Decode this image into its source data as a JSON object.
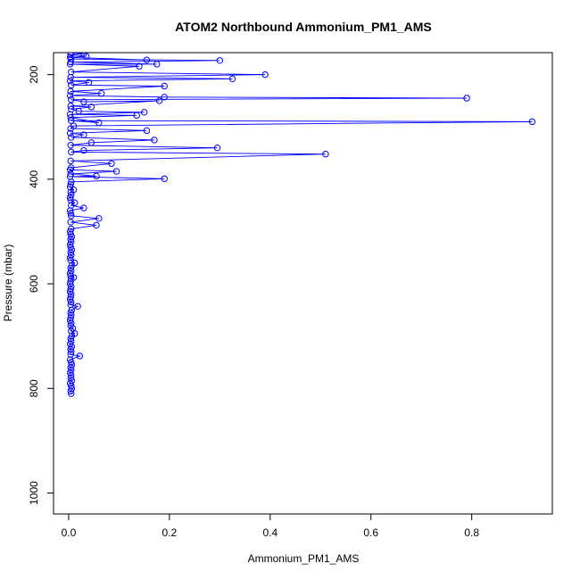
{
  "chart_data": {
    "type": "line",
    "title": "ATOM2 Northbound Ammonium_PM1_AMS",
    "xlabel": "Ammonium_PM1_AMS",
    "ylabel": "Pressure (mbar)",
    "xlim": [
      -0.03,
      0.96
    ],
    "ylim": [
      1040,
      158
    ],
    "y_inverted": true,
    "xticks": [
      0.0,
      0.2,
      0.4,
      0.6,
      0.8
    ],
    "xtick_labels": [
      "0.0",
      "0.2",
      "0.4",
      "0.6",
      "0.8"
    ],
    "yticks": [
      200,
      400,
      600,
      800,
      1000
    ],
    "ytick_labels": [
      "200",
      "400",
      "600",
      "800",
      "1000"
    ],
    "grid": false,
    "legend": "none",
    "series": [
      {
        "color": "#0000ff",
        "marker": "open-circle",
        "points": [
          [
            0.005,
            810
          ],
          [
            0.004,
            805
          ],
          [
            0.006,
            800
          ],
          [
            0.005,
            795
          ],
          [
            0.003,
            790
          ],
          [
            0.006,
            785
          ],
          [
            0.004,
            780
          ],
          [
            0.005,
            775
          ],
          [
            0.003,
            770
          ],
          [
            0.005,
            765
          ],
          [
            0.004,
            760
          ],
          [
            0.006,
            755
          ],
          [
            0.005,
            750
          ],
          [
            0.003,
            745
          ],
          [
            0.022,
            738
          ],
          [
            0.004,
            735
          ],
          [
            0.005,
            730
          ],
          [
            0.004,
            725
          ],
          [
            0.006,
            720
          ],
          [
            0.003,
            715
          ],
          [
            0.005,
            710
          ],
          [
            0.004,
            705
          ],
          [
            0.006,
            700
          ],
          [
            0.012,
            695
          ],
          [
            0.005,
            690
          ],
          [
            0.008,
            685
          ],
          [
            0.004,
            680
          ],
          [
            0.005,
            675
          ],
          [
            0.003,
            670
          ],
          [
            0.004,
            665
          ],
          [
            0.005,
            660
          ],
          [
            0.004,
            655
          ],
          [
            0.006,
            650
          ],
          [
            0.018,
            643
          ],
          [
            0.004,
            640
          ],
          [
            0.005,
            635
          ],
          [
            0.003,
            630
          ],
          [
            0.004,
            625
          ],
          [
            0.005,
            620
          ],
          [
            0.003,
            615
          ],
          [
            0.004,
            610
          ],
          [
            0.005,
            605
          ],
          [
            0.003,
            600
          ],
          [
            0.004,
            595
          ],
          [
            0.005,
            590
          ],
          [
            0.01,
            588
          ],
          [
            0.004,
            585
          ],
          [
            0.003,
            580
          ],
          [
            0.005,
            575
          ],
          [
            0.004,
            570
          ],
          [
            0.006,
            565
          ],
          [
            0.012,
            560
          ],
          [
            0.004,
            555
          ],
          [
            0.003,
            550
          ],
          [
            0.005,
            545
          ],
          [
            0.004,
            540
          ],
          [
            0.006,
            535
          ],
          [
            0.004,
            530
          ],
          [
            0.003,
            525
          ],
          [
            0.005,
            520
          ],
          [
            0.004,
            515
          ],
          [
            0.006,
            510
          ],
          [
            0.004,
            505
          ],
          [
            0.003,
            500
          ],
          [
            0.005,
            495
          ],
          [
            0.055,
            488
          ],
          [
            0.004,
            482
          ],
          [
            0.06,
            475
          ],
          [
            0.005,
            470
          ],
          [
            0.004,
            465
          ],
          [
            0.003,
            460
          ],
          [
            0.03,
            455
          ],
          [
            0.005,
            450
          ],
          [
            0.012,
            445
          ],
          [
            0.004,
            440
          ],
          [
            0.003,
            435
          ],
          [
            0.005,
            430
          ],
          [
            0.004,
            425
          ],
          [
            0.01,
            420
          ],
          [
            0.003,
            415
          ],
          [
            0.004,
            410
          ],
          [
            0.005,
            405
          ],
          [
            0.19,
            399
          ],
          [
            0.003,
            395
          ],
          [
            0.055,
            394
          ],
          [
            0.004,
            390
          ],
          [
            0.095,
            385
          ],
          [
            0.003,
            382
          ],
          [
            0.005,
            378
          ],
          [
            0.085,
            370
          ],
          [
            0.004,
            365
          ],
          [
            0.51,
            352
          ],
          [
            0.005,
            348
          ],
          [
            0.03,
            345
          ],
          [
            0.295,
            340
          ],
          [
            0.004,
            335
          ],
          [
            0.045,
            330
          ],
          [
            0.17,
            325
          ],
          [
            0.005,
            320
          ],
          [
            0.03,
            315
          ],
          [
            0.003,
            312
          ],
          [
            0.155,
            307
          ],
          [
            0.004,
            303
          ],
          [
            0.01,
            298
          ],
          [
            0.92,
            290
          ],
          [
            0.005,
            288
          ],
          [
            0.06,
            292
          ],
          [
            0.004,
            282
          ],
          [
            0.135,
            278
          ],
          [
            0.003,
            276
          ],
          [
            0.15,
            272
          ],
          [
            0.02,
            270
          ],
          [
            0.005,
            266
          ],
          [
            0.045,
            262
          ],
          [
            0.004,
            260
          ],
          [
            0.18,
            250
          ],
          [
            0.03,
            252
          ],
          [
            0.005,
            248
          ],
          [
            0.79,
            245
          ],
          [
            0.19,
            243
          ],
          [
            0.003,
            240
          ],
          [
            0.065,
            236
          ],
          [
            0.004,
            232
          ],
          [
            0.19,
            222
          ],
          [
            0.005,
            220
          ],
          [
            0.04,
            215
          ],
          [
            0.003,
            212
          ],
          [
            0.325,
            208
          ],
          [
            0.004,
            205
          ],
          [
            0.39,
            200
          ],
          [
            0.005,
            195
          ],
          [
            0.14,
            184
          ],
          [
            0.003,
            180
          ],
          [
            0.175,
            180
          ],
          [
            0.004,
            176
          ],
          [
            0.3,
            173
          ],
          [
            0.005,
            170
          ],
          [
            0.155,
            172
          ],
          [
            0.003,
            167
          ],
          [
            0.035,
            165
          ],
          [
            0.004,
            162
          ],
          [
            0.03,
            160
          ],
          [
            0.005,
            158
          ]
        ]
      }
    ]
  }
}
